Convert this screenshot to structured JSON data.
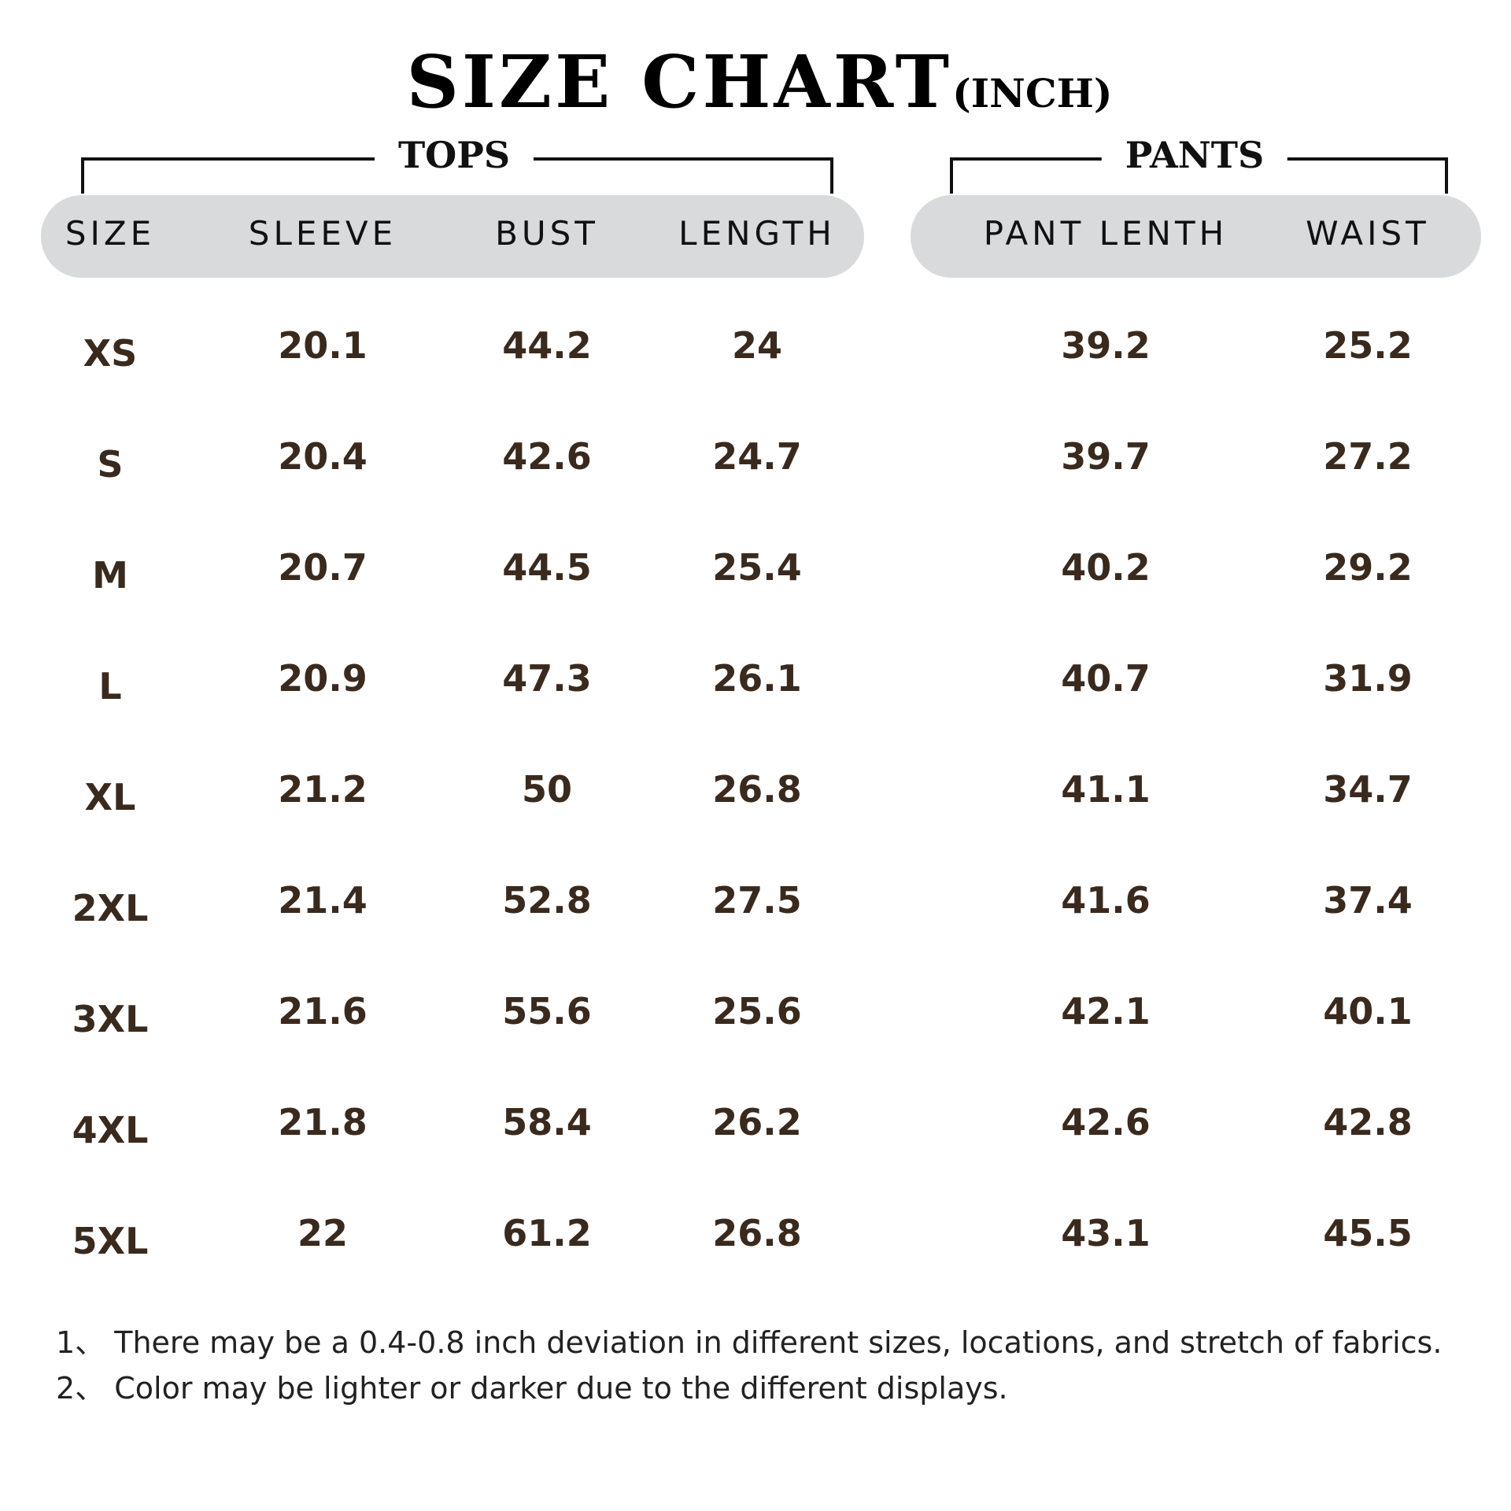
{
  "title": {
    "main": "SIZE CHART",
    "unit": "(INCH)"
  },
  "groups": {
    "tops": "TOPS",
    "pants": "PANTS"
  },
  "headers": [
    "SIZE",
    "SLEEVE",
    "BUST",
    "LENGTH",
    "PANT LENTH",
    "WAIST"
  ],
  "rows": [
    [
      "XS",
      "20.1",
      "44.2",
      "24",
      "39.2",
      "25.2"
    ],
    [
      "S",
      "20.4",
      "42.6",
      "24.7",
      "39.7",
      "27.2"
    ],
    [
      "M",
      "20.7",
      "44.5",
      "25.4",
      "40.2",
      "29.2"
    ],
    [
      "L",
      "20.9",
      "47.3",
      "26.1",
      "40.7",
      "31.9"
    ],
    [
      "XL",
      "21.2",
      "50",
      "26.8",
      "41.1",
      "34.7"
    ],
    [
      "2XL",
      "21.4",
      "52.8",
      "27.5",
      "41.6",
      "37.4"
    ],
    [
      "3XL",
      "21.6",
      "55.6",
      "25.6",
      "42.1",
      "40.1"
    ],
    [
      "4XL",
      "21.8",
      "58.4",
      "26.2",
      "42.6",
      "42.8"
    ],
    [
      "5XL",
      "22",
      "61.2",
      "26.8",
      "43.1",
      "45.5"
    ]
  ],
  "notes": [
    "1、 There may be a 0.4-0.8 inch deviation in different sizes, locations, and stretch of fabrics.",
    "2、 Color may be lighter or darker due to the different displays."
  ],
  "colors": {
    "header_bg": "#d9dadb",
    "value_text": "#3a2a1e"
  }
}
